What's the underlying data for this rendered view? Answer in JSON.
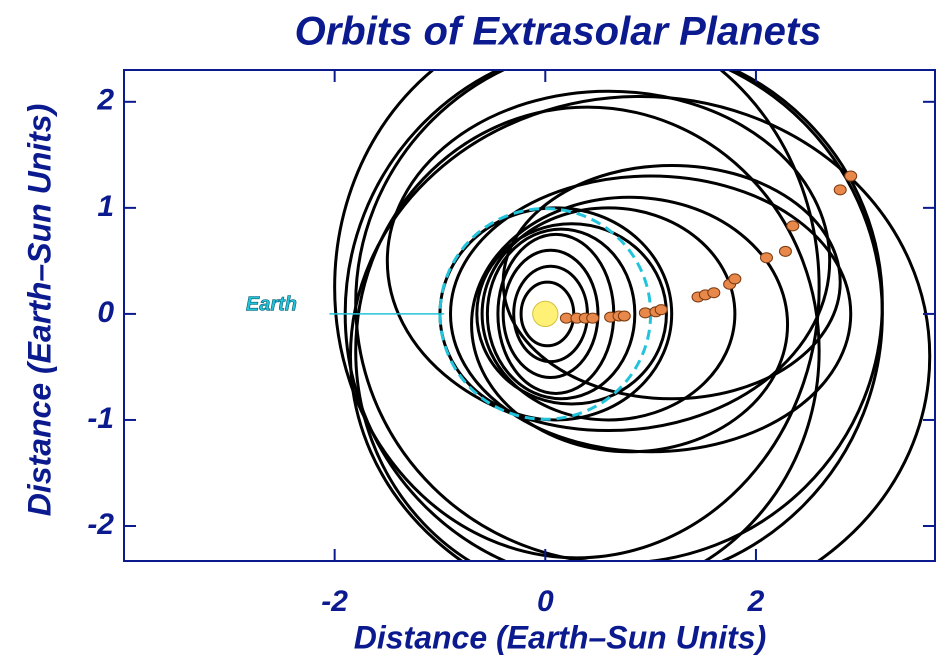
{
  "chart_data": {
    "type": "scatter",
    "title": "Orbits of Extrasolar Planets",
    "x_label": "Distance  (Earth–Sun Units)",
    "y_label": "Distance  (Earth–Sun Units)",
    "xlim": [
      -4,
      3.7
    ],
    "ylim": [
      -2.33,
      2.3
    ],
    "xticks": [
      -2,
      0,
      2
    ],
    "yticks": [
      -2,
      -1,
      0,
      1,
      2
    ],
    "axis_color": "#0b1a8e",
    "orbit_color": "#000000",
    "orbits": [
      {
        "cx": 0.65,
        "cy": 0,
        "rx": 2.55,
        "ry": 2.55
      },
      {
        "cx": 0.7,
        "cy": 0.1,
        "rx": 2.5,
        "ry": 2.45
      },
      {
        "cx": 0.3,
        "cy": 0.25,
        "rx": 2.3,
        "ry": 2.55
      },
      {
        "cx": 0.9,
        "cy": -0.4,
        "rx": 2.75,
        "ry": 2.45
      },
      {
        "cx": 0.4,
        "cy": -0.35,
        "rx": 2.2,
        "ry": 2.3
      },
      {
        "cx": 0.6,
        "cy": 0.5,
        "rx": 2.1,
        "ry": 1.6
      },
      {
        "cx": 1.0,
        "cy": 0,
        "rx": 1.9,
        "ry": 1.3
      },
      {
        "cx": 1.2,
        "cy": 0.3,
        "rx": 1.6,
        "ry": 1.1
      },
      {
        "cx": 0.8,
        "cy": -0.1,
        "rx": 1.5,
        "ry": 1.2
      },
      {
        "cx": 0.6,
        "cy": 0,
        "rx": 1.2,
        "ry": 1.0
      },
      {
        "cx": 0.1,
        "cy": 0,
        "rx": 1.1,
        "ry": 1.0
      },
      {
        "cx": 0.25,
        "cy": 0,
        "rx": 0.9,
        "ry": 0.85
      },
      {
        "cx": 0.15,
        "cy": 0,
        "rx": 0.7,
        "ry": 0.8
      },
      {
        "cx": 0.1,
        "cy": 0,
        "rx": 0.55,
        "ry": 0.75
      },
      {
        "cx": 0.05,
        "cy": 0,
        "rx": 0.45,
        "ry": 0.6
      },
      {
        "cx": 0.05,
        "cy": 0,
        "rx": 0.35,
        "ry": 0.45
      },
      {
        "cx": 0.02,
        "cy": 0,
        "rx": 0.25,
        "ry": 0.3
      }
    ],
    "earth": {
      "label": "Earth",
      "radius": 1,
      "color": "#22c4dc",
      "label_x": -2.6,
      "label_y": 0.08,
      "line_x": [
        -2.05,
        -0.96
      ],
      "line_y": 0
    },
    "sun": {
      "x": 0,
      "y": 0,
      "radius": 0.12,
      "color": "#fff176"
    },
    "planets": {
      "color": "#e8884a",
      "x": [
        0.2,
        0.3,
        0.38,
        0.45,
        0.62,
        0.7,
        0.75,
        0.95,
        1.05,
        1.1,
        1.45,
        1.52,
        1.6,
        1.75,
        1.8,
        2.1,
        2.28,
        2.35,
        2.8,
        2.9
      ],
      "y": [
        -0.04,
        -0.04,
        -0.04,
        -0.04,
        -0.03,
        -0.02,
        -0.02,
        0.01,
        0.02,
        0.04,
        0.16,
        0.18,
        0.2,
        0.28,
        0.33,
        0.53,
        0.59,
        0.83,
        1.17,
        1.3
      ]
    }
  }
}
